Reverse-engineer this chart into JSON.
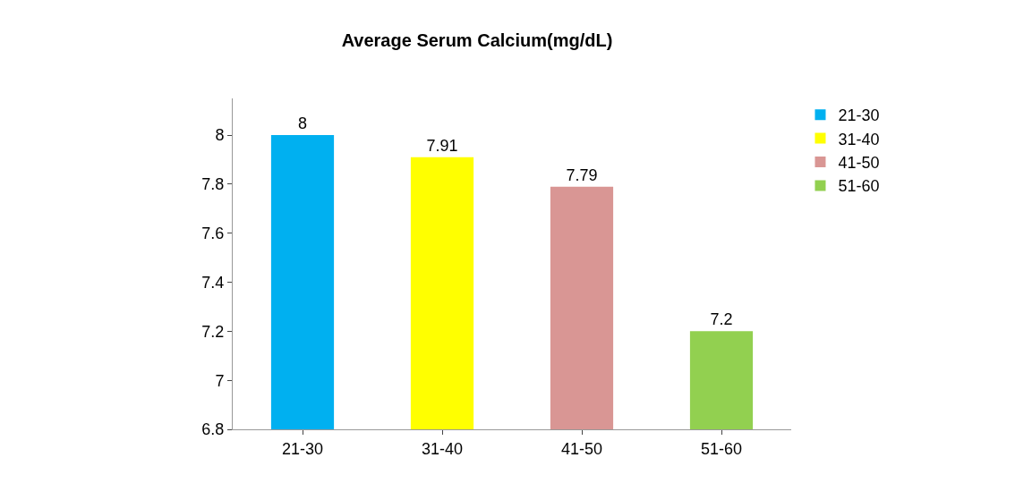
{
  "chart_data": {
    "type": "bar",
    "title": "Average Serum Calcium(mg/dL)",
    "categories": [
      "21-30",
      "31-40",
      "41-50",
      "51-60"
    ],
    "series": [
      {
        "name": "21-30",
        "color": "#00b0f0",
        "values": [
          8,
          null,
          null,
          null
        ]
      },
      {
        "name": "31-40",
        "color": "#ffff00",
        "values": [
          null,
          7.91,
          null,
          null
        ]
      },
      {
        "name": "41-50",
        "color": "#d99694",
        "values": [
          null,
          null,
          7.79,
          null
        ]
      },
      {
        "name": "51-60",
        "color": "#92d050",
        "values": [
          null,
          null,
          null,
          7.2
        ]
      }
    ],
    "ylim": [
      6.8,
      8.15
    ],
    "yticks": [
      6.8,
      7,
      7.2,
      7.4,
      7.6,
      7.8,
      8
    ],
    "data_labels": true,
    "legend": "right"
  }
}
